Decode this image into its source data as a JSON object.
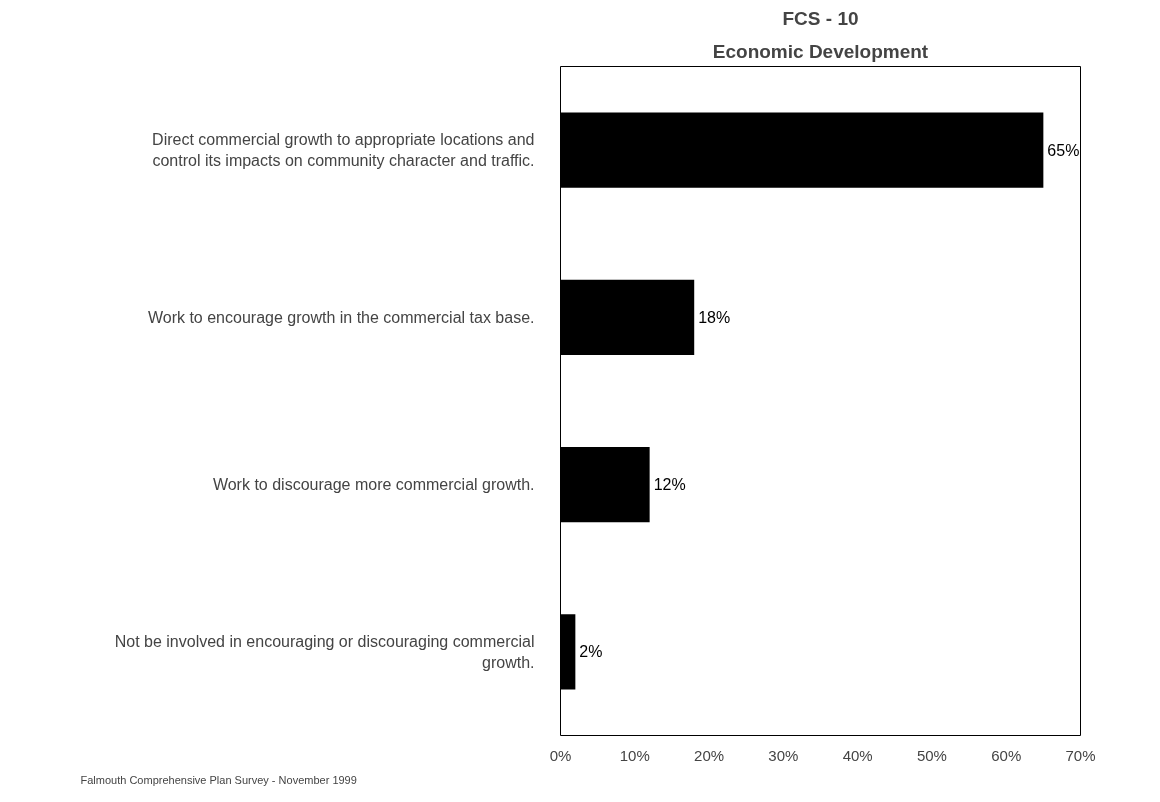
{
  "chart_data": {
    "type": "bar",
    "orientation": "horizontal",
    "title": "FCS - 10",
    "subtitle": "Economic Development",
    "categories": [
      "Direct commercial growth to appropriate locations and control its impacts on community character and traffic.",
      "Work to encourage growth in the commercial tax base.",
      "Work to discourage more commercial growth.",
      "Not be involved in encouraging or discouraging commercial growth."
    ],
    "values": [
      65,
      18,
      12,
      2
    ],
    "color": "#000000",
    "value_labels": [
      "65%",
      "18%",
      "12%",
      "2%"
    ],
    "xlim": [
      0,
      70
    ],
    "xticks": [
      {
        "value": 0,
        "label": "0%"
      },
      {
        "value": 10,
        "label": "10%"
      },
      {
        "value": 20,
        "label": "20%"
      },
      {
        "value": 30,
        "label": "30%"
      },
      {
        "value": 40,
        "label": "40%"
      },
      {
        "value": 50,
        "label": "50%"
      },
      {
        "value": 60,
        "label": "60%"
      },
      {
        "value": 70,
        "label": "70%"
      }
    ],
    "grid": false,
    "annotations": [
      "Falmouth Comprehensive Plan Survey - November 1999"
    ]
  }
}
